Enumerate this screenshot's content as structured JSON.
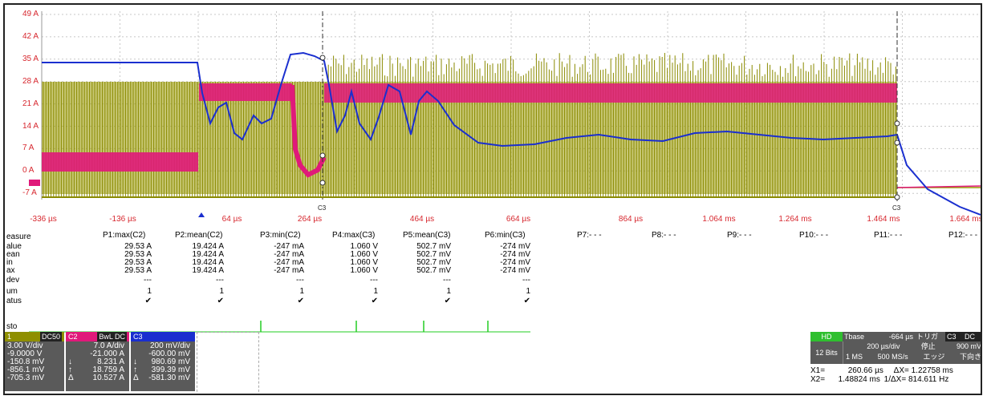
{
  "y_axis_labels": [
    "49 A",
    "42 A",
    "35 A",
    "28 A",
    "21 A",
    "14 A",
    "7 A",
    "0 A",
    "-7 A"
  ],
  "x_axis_labels": [
    "-336 µs",
    "-136 µs",
    "64 µs",
    "264 µs",
    "464 µs",
    "664 µs",
    "864 µs",
    "1.064 ms",
    "1.264 ms",
    "1.464 ms",
    "1.664 ms"
  ],
  "colors": {
    "grid": "#c8c8c8",
    "axis_label": "#d7282f",
    "ch1": "#999900",
    "ch2": "#e0197a",
    "ch3": "#1a2fcf",
    "histo": "#22cc22"
  },
  "cursor_markers": {
    "c1": "C3",
    "c2": "C3"
  },
  "measure": {
    "row_labels": [
      "easure",
      "alue",
      "ean",
      "in",
      "ax",
      "dev",
      "um",
      "atus",
      "sto"
    ],
    "headers": [
      "P1:max(C2)",
      "P2:mean(C2)",
      "P3:min(C2)",
      "P4:max(C3)",
      "P5:mean(C3)",
      "P6:min(C3)",
      "P7:- - -",
      "P8:- - -",
      "P9:- - -",
      "P10:- - -",
      "P11:- - -",
      "P12:- - -"
    ],
    "columns": [
      [
        "29.53 A",
        "29.53 A",
        "29.53 A",
        "29.53 A",
        "---",
        "1",
        "✔"
      ],
      [
        "19.424 A",
        "19.424 A",
        "19.424 A",
        "19.424 A",
        "---",
        "1",
        "✔"
      ],
      [
        "-247 mA",
        "-247 mA",
        "-247 mA",
        "-247 mA",
        "---",
        "1",
        "✔"
      ],
      [
        "1.060 V",
        "1.060 V",
        "1.060 V",
        "1.060 V",
        "---",
        "1",
        "✔"
      ],
      [
        "502.7 mV",
        "502.7 mV",
        "502.7 mV",
        "502.7 mV",
        "---",
        "1",
        "✔"
      ],
      [
        "-274 mV",
        "-274 mV",
        "-274 mV",
        "-274 mV",
        "---",
        "1",
        "✔"
      ]
    ]
  },
  "channels": [
    {
      "head_left": "1",
      "head_right": "DC50",
      "lines": [
        [
          "3.00 V/div",
          ""
        ],
        [
          "-9.0000 V",
          ""
        ],
        [
          "-150.8 mV",
          ""
        ],
        [
          "-856.1 mV",
          ""
        ],
        [
          "-705.3 mV",
          ""
        ]
      ]
    },
    {
      "head_left": "C2",
      "head_right": "BwL DC",
      "lines": [
        [
          "",
          "7.0 A/div"
        ],
        [
          "",
          "-21.000 A"
        ],
        [
          "↓",
          "8.231 A"
        ],
        [
          "↑",
          "18.759 A"
        ],
        [
          "Δ",
          "10.527 A"
        ]
      ]
    },
    {
      "head_left": "C3",
      "head_right": "",
      "lines": [
        [
          "",
          "200 mV/div"
        ],
        [
          "",
          "-600.00 mV"
        ],
        [
          "↓",
          "980.69 mV"
        ],
        [
          "↑",
          "399.39 mV"
        ],
        [
          "Δ",
          "-581.30 mV"
        ]
      ]
    }
  ],
  "timebase": {
    "hd": "HD",
    "tbase_label": "Tbase",
    "tbase_val": "-664 µs",
    "trigger_label": "トリガ",
    "trigger_ch": "C3",
    "trigger_cpl": "DC",
    "bits": "12 Bits",
    "div": "200 µs/div",
    "stop": "停止",
    "trig_level": "900 mV",
    "ms": "1 MS",
    "rate": "500 MS/s",
    "edge": "エッジ",
    "slope": "下向き",
    "x1_label": "X1=",
    "x1": "260.66 µs",
    "dx_label": "ΔX=",
    "dx": "1.22758 ms",
    "x2_label": "X2=",
    "x2": "1.48824 ms",
    "inv_dx_label": "1/ΔX=",
    "inv_dx": "814.611 Hz"
  }
}
